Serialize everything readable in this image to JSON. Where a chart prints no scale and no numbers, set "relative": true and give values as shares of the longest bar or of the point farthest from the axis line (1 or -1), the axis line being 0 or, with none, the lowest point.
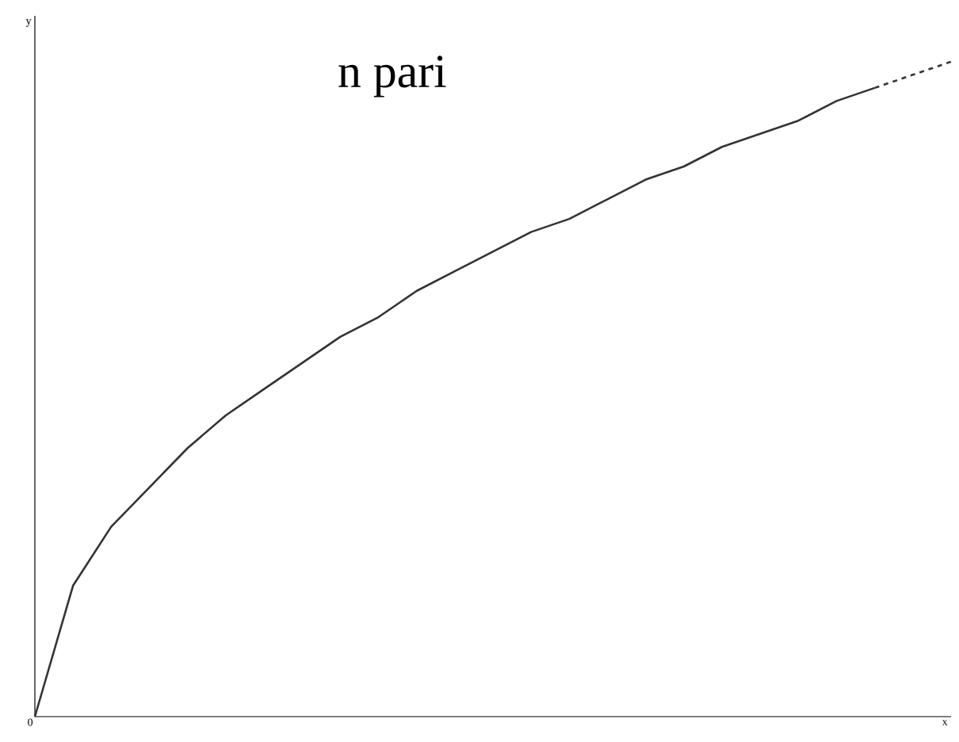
{
  "chart_data": {
    "type": "line",
    "title": "n pari",
    "xlabel": "x",
    "ylabel": "y",
    "relative": true,
    "annotations": [
      "0"
    ],
    "categories": [
      null,
      null,
      null,
      null,
      null,
      null,
      null,
      null,
      null,
      null,
      null,
      null,
      null,
      null,
      null,
      null,
      null,
      null,
      null,
      null,
      null,
      null,
      null,
      null,
      null
    ],
    "series": [
      {
        "color": "#333333",
        "line_style": "solid",
        "values": [
          0,
          0.2,
          0.29,
          0.35,
          0.41,
          0.46,
          0.5,
          0.54,
          0.58,
          0.61,
          0.65,
          0.68,
          0.71,
          0.74,
          0.76,
          0.79,
          0.82,
          0.84,
          0.87,
          0.89,
          0.91,
          0.94,
          0.96,
          null,
          null
        ]
      },
      {
        "color": "#333333",
        "line_style": "dashed",
        "values": [
          null,
          null,
          null,
          null,
          null,
          null,
          null,
          null,
          null,
          null,
          null,
          null,
          null,
          null,
          null,
          null,
          null,
          null,
          null,
          null,
          null,
          null,
          0.96,
          0.98,
          1
        ]
      }
    ]
  }
}
